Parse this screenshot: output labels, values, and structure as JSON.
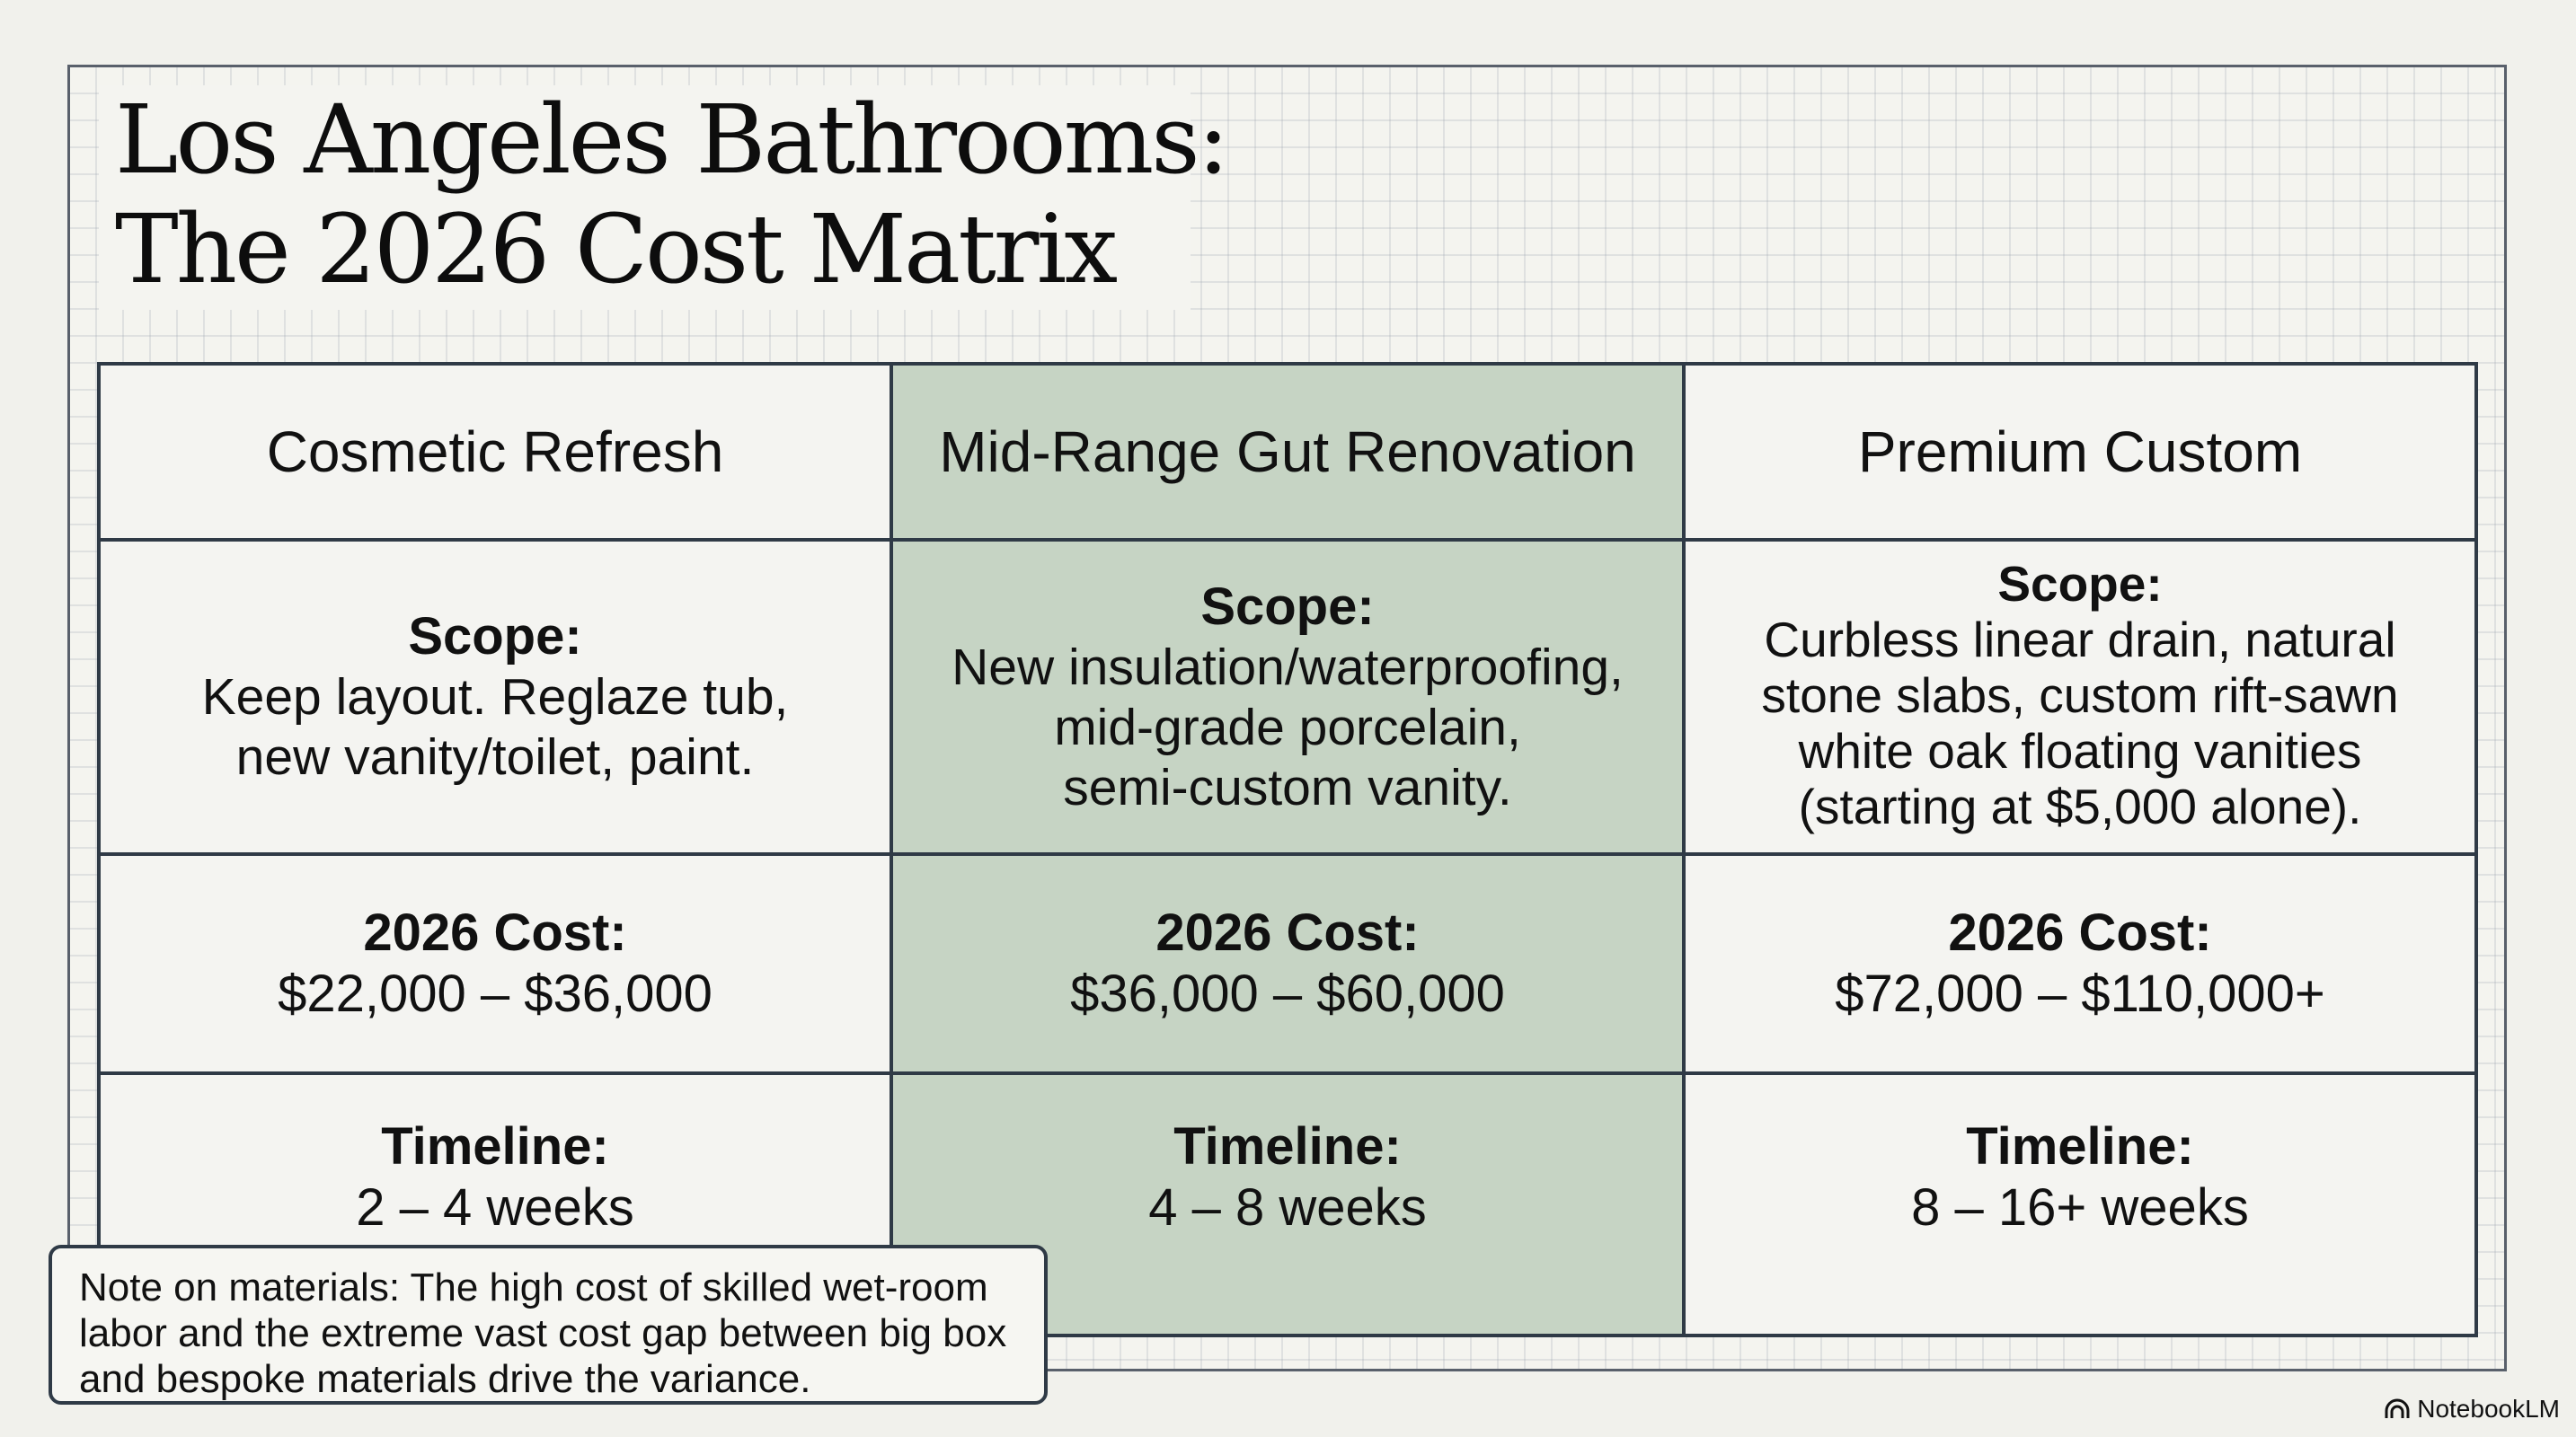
{
  "title": {
    "line1": "Los Angeles Bathrooms:",
    "line2": "The 2026 Cost Matrix"
  },
  "columns": [
    {
      "header": "Cosmetic Refresh",
      "scope_label": "Scope:",
      "scope_lines": [
        "Keep layout. Reglaze tub,",
        "new vanity/toilet, paint."
      ],
      "cost_label": "2026 Cost:",
      "cost_value": "$22,000 – $36,000",
      "timeline_label": "Timeline:",
      "timeline_value": "2 – 4 weeks"
    },
    {
      "header": "Mid-Range Gut Renovation",
      "scope_label": "Scope:",
      "scope_lines": [
        "New insulation/waterproofing,",
        "mid-grade porcelain,",
        "semi-custom vanity."
      ],
      "cost_label": "2026 Cost:",
      "cost_value": "$36,000 – $60,000",
      "timeline_label": "Timeline:",
      "timeline_value": "4 – 8 weeks"
    },
    {
      "header": "Premium Custom",
      "scope_label": "Scope:",
      "scope_lines": [
        "Curbless linear drain, natural",
        "stone slabs, custom rift-sawn",
        "white oak floating vanities",
        "(starting at $5,000 alone)."
      ],
      "cost_label": "2026 Cost:",
      "cost_value": "$72,000 – $110,000+",
      "timeline_label": "Timeline:",
      "timeline_value": "8 – 16+ weeks"
    }
  ],
  "note": {
    "text": "Note on materials: The high cost of skilled wet-room labor and the extreme vast cost gap between big box and bespoke materials drive the variance."
  },
  "brand": {
    "name": "NotebookLM",
    "icon": "notebooklm-logo-icon"
  },
  "colors": {
    "highlight_column": "#c6d4c4",
    "grid_border": "#2f3a46",
    "background": "#f1f1ec"
  }
}
